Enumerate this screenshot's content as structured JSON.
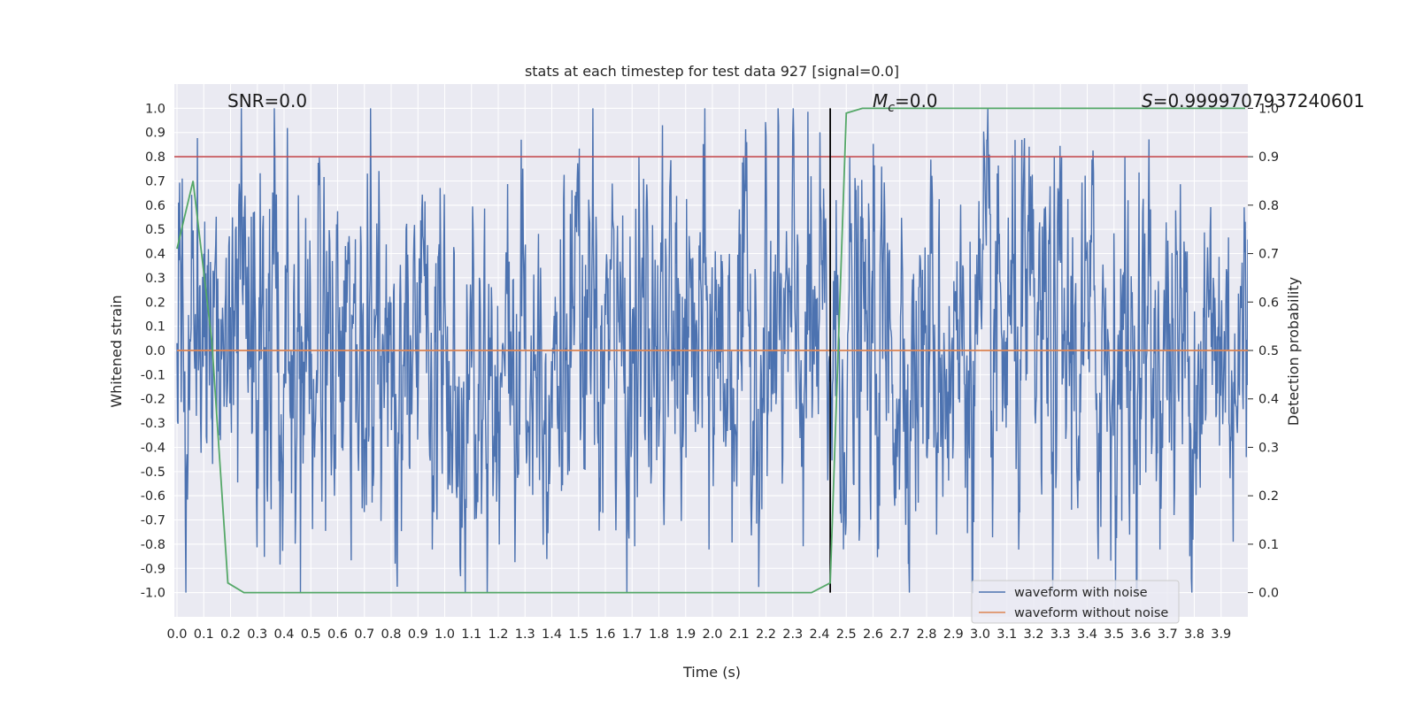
{
  "chart_data": {
    "type": "line",
    "title": "stats at each timestep for test data 927 [signal=0.0]",
    "xlabel": "Time (s)",
    "ylabel": "Whitened strain",
    "y2label": "Detection probability",
    "xlim": [
      0.0,
      4.0
    ],
    "ylim": [
      -1.1,
      1.1
    ],
    "y2lim": [
      -0.05,
      1.05
    ],
    "grid": true,
    "x_ticks": [
      "0.0",
      "0.1",
      "0.2",
      "0.3",
      "0.4",
      "0.5",
      "0.6",
      "0.7",
      "0.8",
      "0.9",
      "1.0",
      "1.1",
      "1.2",
      "1.3",
      "1.4",
      "1.5",
      "1.6",
      "1.7",
      "1.8",
      "1.9",
      "2.0",
      "2.1",
      "2.2",
      "2.3",
      "2.4",
      "2.5",
      "2.6",
      "2.7",
      "2.8",
      "2.9",
      "3.0",
      "3.1",
      "3.2",
      "3.3",
      "3.4",
      "3.5",
      "3.6",
      "3.7",
      "3.8",
      "3.9"
    ],
    "y_ticks": [
      "1.0",
      "0.9",
      "0.8",
      "0.7",
      "0.6",
      "0.5",
      "0.4",
      "0.3",
      "0.2",
      "0.1",
      "0.0",
      "-0.1",
      "-0.2",
      "-0.3",
      "-0.4",
      "-0.5",
      "-0.6",
      "-0.7",
      "-0.8",
      "-0.9",
      "-1.0"
    ],
    "y2_ticks": [
      "1.0",
      "0.9",
      "0.8",
      "0.7",
      "0.6",
      "0.5",
      "0.4",
      "0.3",
      "0.2",
      "0.1",
      "0.0"
    ],
    "annotations": {
      "snr": "SNR=0.0",
      "mc_sym": "M",
      "mc_sub": "c",
      "mc_val": "=0.0",
      "s_sym": "S",
      "s_val": "=0.9999707937240601"
    },
    "legend": {
      "placement": "lower-right",
      "entries": [
        "waveform with noise",
        "waveform without noise"
      ]
    },
    "series": [
      {
        "name": "waveform with noise",
        "axis": "left",
        "color": "#4c72b0",
        "note_kind": "noise",
        "sample_count": 2048,
        "typical_range": [
          -1.0,
          1.0
        ]
      },
      {
        "name": "waveform without noise",
        "axis": "left",
        "color": "#dd8452",
        "x": [
          0.0,
          4.0
        ],
        "y": [
          0.0,
          0.0
        ]
      },
      {
        "axis": "right",
        "color": "#55a868",
        "x": [
          0.0,
          0.06,
          0.13,
          0.19,
          0.25,
          2.37,
          2.44,
          2.5,
          2.56,
          3.99
        ],
        "y": [
          0.71,
          0.85,
          0.52,
          0.02,
          0.0,
          0.0,
          0.02,
          0.99,
          1.0,
          1.0
        ]
      }
    ],
    "reference_lines": [
      {
        "kind": "hline",
        "axis": "right",
        "value": 0.9,
        "color": "#c44e52"
      },
      {
        "kind": "vline",
        "value": 2.44,
        "y2_from": 0.0,
        "y2_to": 1.0,
        "color": "#000000"
      }
    ]
  }
}
